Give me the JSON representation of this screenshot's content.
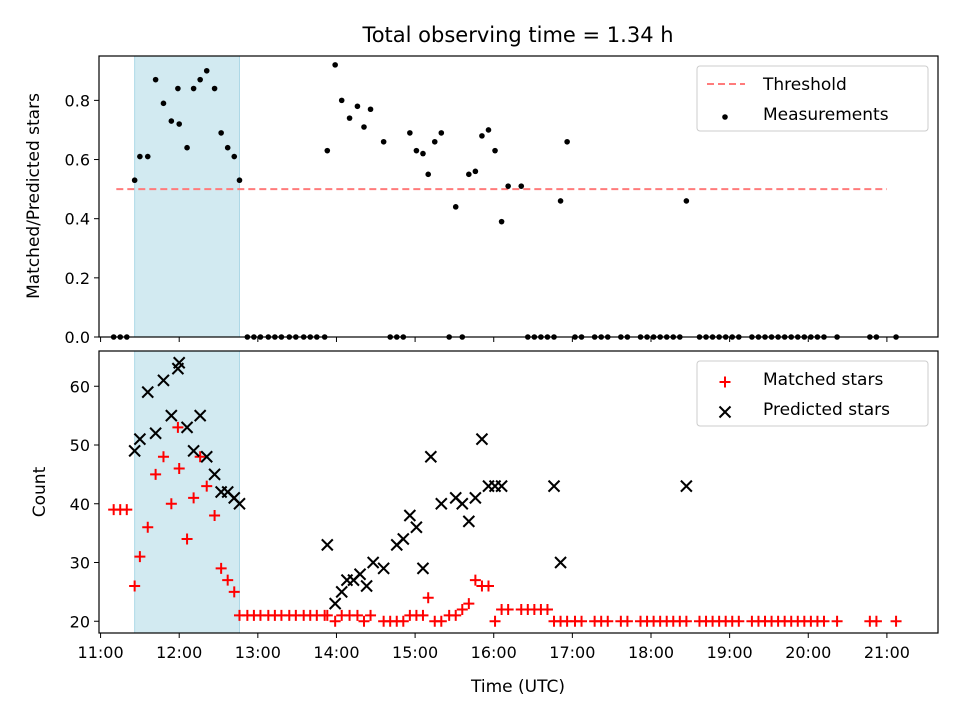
{
  "title": "Total observing time = 1.34 h",
  "colors": {
    "threshold": "#ff7b7b",
    "measurement": "#000000",
    "matched": "#ff0000",
    "predicted": "#000000",
    "shade": "#add8e6"
  },
  "chart_data": [
    {
      "type": "scatter",
      "ylabel": "Matched/Predicted stars",
      "xlim": [
        10.98,
        21.65
      ],
      "ylim": [
        0,
        0.95
      ],
      "yticks": [
        "0.0",
        "0.2",
        "0.4",
        "0.6",
        "0.8"
      ],
      "shaded_region": [
        "11:26",
        "12:46"
      ],
      "legend": {
        "position": "upper right",
        "entries": [
          "Threshold",
          "Measurements"
        ]
      },
      "series": [
        {
          "name": "Threshold",
          "kind": "dashed-line",
          "x": [
            "11:12",
            "21:00"
          ],
          "y": [
            0.5,
            0.5
          ]
        },
        {
          "name": "Measurements",
          "kind": "dot",
          "x": [
            "11:10",
            "11:15",
            "11:20",
            "11:26",
            "11:30",
            "11:36",
            "11:42",
            "11:48",
            "11:54",
            "11:59",
            "12:00",
            "12:06",
            "12:11",
            "12:16",
            "12:21",
            "12:27",
            "12:32",
            "12:37",
            "12:42",
            "12:46",
            "12:52",
            "12:57",
            "13:02",
            "13:08",
            "13:13",
            "13:18",
            "13:24",
            "13:29",
            "13:35",
            "13:40",
            "13:45",
            "13:51",
            "13:53",
            "13:59",
            "14:04",
            "14:10",
            "14:16",
            "14:21",
            "14:26",
            "14:36",
            "14:41",
            "14:46",
            "14:51",
            "14:56",
            "15:01",
            "15:06",
            "15:10",
            "15:15",
            "15:20",
            "15:26",
            "15:31",
            "15:36",
            "15:41",
            "15:46",
            "15:51",
            "15:56",
            "16:01",
            "16:06",
            "16:11",
            "16:21",
            "16:26",
            "16:31",
            "16:36",
            "16:41",
            "16:46",
            "16:51",
            "16:56",
            "17:02",
            "17:07",
            "17:17",
            "17:22",
            "17:27",
            "17:37",
            "17:42",
            "17:52",
            "17:57",
            "18:02",
            "18:07",
            "18:12",
            "18:17",
            "18:22",
            "18:27",
            "18:37",
            "18:42",
            "18:47",
            "18:52",
            "18:57",
            "19:02",
            "19:07",
            "19:17",
            "19:22",
            "19:27",
            "19:32",
            "19:37",
            "19:42",
            "19:47",
            "19:52",
            "19:57",
            "20:02",
            "20:07",
            "20:12",
            "20:22",
            "20:47",
            "20:52",
            "21:07"
          ],
          "y": [
            0,
            0,
            0,
            0.53,
            0.61,
            0.61,
            0.87,
            0.79,
            0.73,
            0.84,
            0.72,
            0.64,
            0.84,
            0.87,
            0.9,
            0.84,
            0.69,
            0.64,
            0.61,
            0.53,
            0,
            0,
            0,
            0,
            0,
            0,
            0,
            0,
            0,
            0,
            0,
            0,
            0.63,
            0.92,
            0.8,
            0.74,
            0.78,
            0.71,
            0.77,
            0.66,
            0,
            0,
            0,
            0.69,
            0.63,
            0.62,
            0.55,
            0.66,
            0.69,
            0,
            0.44,
            0,
            0.55,
            0.56,
            0.68,
            0.7,
            0.63,
            0.39,
            0.51,
            0.51,
            0,
            0,
            0,
            0,
            0,
            0.46,
            0.66,
            0,
            0,
            0,
            0,
            0,
            0,
            0,
            0,
            0,
            0,
            0,
            0,
            0,
            0,
            0.46,
            0,
            0,
            0,
            0,
            0,
            0,
            0,
            0,
            0,
            0,
            0,
            0,
            0,
            0,
            0,
            0,
            0,
            0,
            0,
            0,
            0,
            0,
            0
          ]
        }
      ]
    },
    {
      "type": "scatter",
      "xlabel": "Time (UTC)",
      "ylabel": "Count",
      "xlim": [
        10.98,
        21.65
      ],
      "ylim": [
        18,
        66
      ],
      "yticks": [
        "20",
        "30",
        "40",
        "50",
        "60"
      ],
      "xticks": [
        "11:00",
        "12:00",
        "13:00",
        "14:00",
        "15:00",
        "16:00",
        "17:00",
        "18:00",
        "19:00",
        "20:00",
        "21:00"
      ],
      "shaded_region": [
        "11:26",
        "12:46"
      ],
      "legend": {
        "position": "upper right",
        "entries": [
          "Matched stars",
          "Predicted stars"
        ]
      },
      "series": [
        {
          "name": "Matched stars",
          "kind": "plus",
          "x": [
            "11:10",
            "11:15",
            "11:20",
            "11:26",
            "11:30",
            "11:36",
            "11:42",
            "11:48",
            "11:54",
            "11:59",
            "12:00",
            "12:06",
            "12:11",
            "12:16",
            "12:21",
            "12:27",
            "12:32",
            "12:37",
            "12:42",
            "12:46",
            "12:52",
            "12:57",
            "13:02",
            "13:08",
            "13:13",
            "13:18",
            "13:24",
            "13:29",
            "13:35",
            "13:40",
            "13:45",
            "13:51",
            "13:53",
            "13:59",
            "14:04",
            "14:10",
            "14:16",
            "14:21",
            "14:26",
            "14:36",
            "14:41",
            "14:46",
            "14:51",
            "14:56",
            "15:01",
            "15:06",
            "15:10",
            "15:15",
            "15:20",
            "15:26",
            "15:31",
            "15:36",
            "15:41",
            "15:46",
            "15:51",
            "15:56",
            "16:01",
            "16:06",
            "16:11",
            "16:21",
            "16:26",
            "16:31",
            "16:36",
            "16:41",
            "16:46",
            "16:51",
            "16:56",
            "17:02",
            "17:07",
            "17:17",
            "17:22",
            "17:27",
            "17:37",
            "17:42",
            "17:52",
            "17:57",
            "18:02",
            "18:07",
            "18:12",
            "18:17",
            "18:22",
            "18:27",
            "18:37",
            "18:42",
            "18:47",
            "18:52",
            "18:57",
            "19:02",
            "19:07",
            "19:17",
            "19:22",
            "19:27",
            "19:32",
            "19:37",
            "19:42",
            "19:47",
            "19:52",
            "19:57",
            "20:02",
            "20:07",
            "20:12",
            "20:22",
            "20:47",
            "20:52",
            "21:07"
          ],
          "y": [
            39,
            39,
            39,
            26,
            31,
            36,
            45,
            48,
            40,
            53,
            46,
            34,
            41,
            48,
            43,
            38,
            29,
            27,
            25,
            21,
            21,
            21,
            21,
            21,
            21,
            21,
            21,
            21,
            21,
            21,
            21,
            21,
            21,
            20,
            21,
            21,
            21,
            20,
            21,
            20,
            20,
            20,
            20,
            21,
            21,
            21,
            24,
            20,
            20,
            21,
            21,
            22,
            23,
            27,
            26,
            26,
            20,
            22,
            22,
            22,
            22,
            22,
            22,
            22,
            20,
            20,
            20,
            20,
            20,
            20,
            20,
            20,
            20,
            20,
            20,
            20,
            20,
            20,
            20,
            20,
            20,
            20,
            20,
            20,
            20,
            20,
            20,
            20,
            20,
            20,
            20,
            20,
            20,
            20,
            20,
            20,
            20,
            20,
            20,
            20,
            20,
            20,
            20,
            20,
            20
          ]
        },
        {
          "name": "Predicted stars",
          "kind": "x",
          "x": [
            "11:26",
            "11:30",
            "11:36",
            "11:42",
            "11:48",
            "11:54",
            "11:59",
            "12:00",
            "12:06",
            "12:11",
            "12:16",
            "12:21",
            "12:27",
            "12:32",
            "12:37",
            "12:42",
            "12:46",
            "13:53",
            "13:59",
            "14:04",
            "14:08",
            "14:13",
            "14:18",
            "14:23",
            "14:28",
            "14:36",
            "14:46",
            "14:51",
            "14:56",
            "15:01",
            "15:06",
            "15:12",
            "15:20",
            "15:31",
            "15:36",
            "15:41",
            "15:46",
            "15:51",
            "15:56",
            "16:01",
            "16:06",
            "16:46",
            "16:51",
            "18:27"
          ],
          "y": [
            49,
            51,
            59,
            52,
            61,
            55,
            63,
            64,
            53,
            49,
            55,
            48,
            45,
            42,
            42,
            41,
            40,
            33,
            23,
            25,
            27,
            27,
            28,
            26,
            30,
            29,
            33,
            34,
            38,
            36,
            29,
            48,
            40,
            41,
            40,
            37,
            41,
            51,
            43,
            43,
            43,
            43,
            30,
            43
          ]
        }
      ]
    }
  ]
}
